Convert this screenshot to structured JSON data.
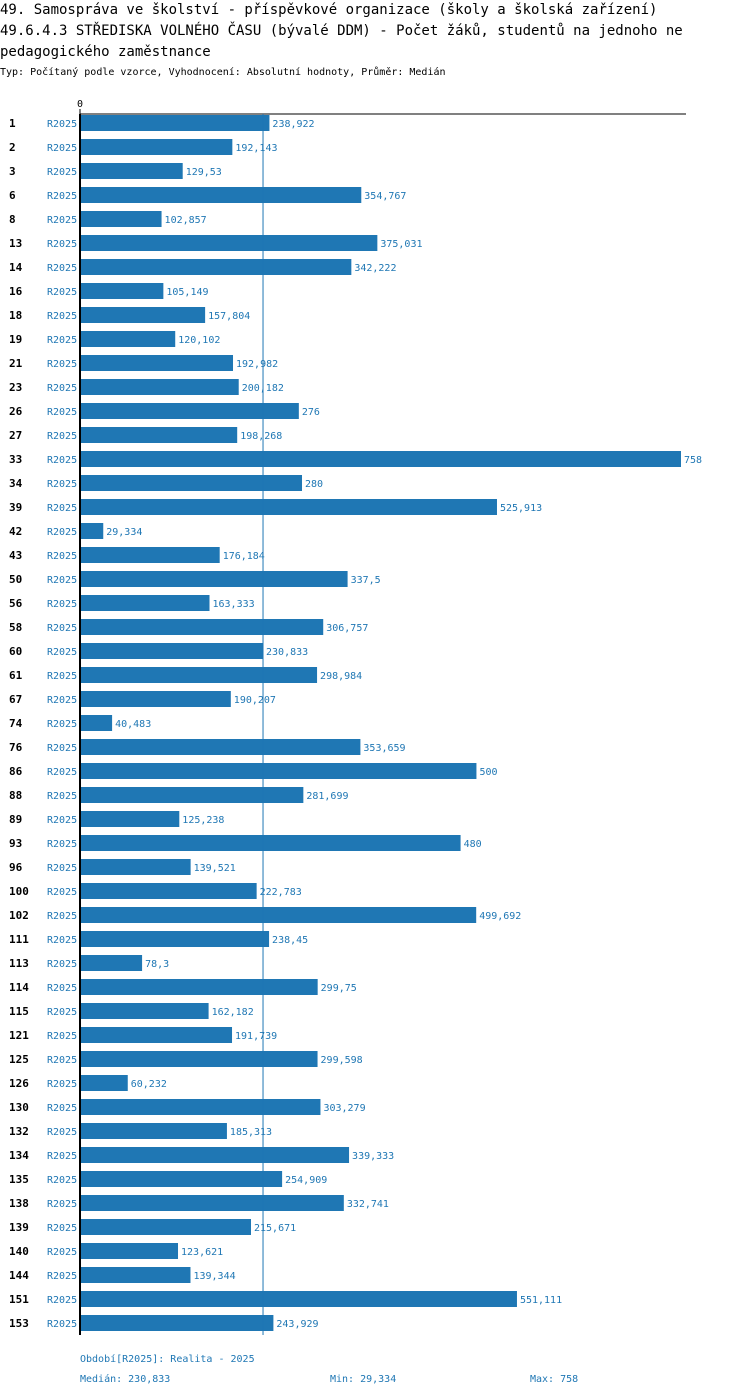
{
  "header": {
    "title_line1": "49. Samospráva ve školství - příspěvkové organizace (školy a školská zařízení)",
    "title_line2": "49.6.4.3 STŘEDISKA VOLNÉHO ČASU (bývalé DDM) - Počet žáků, studentů na jednoho ne",
    "title_line3": "pedagogického zaměstnance",
    "subtitle": "Typ: Počítaný podle vzorce, Vyhodnocení: Absolutní hodnoty, Průměr: Medián"
  },
  "chart_data": {
    "type": "bar",
    "orientation": "horizontal",
    "x_axis_tick": "0",
    "xlim": [
      0,
      758
    ],
    "median": 230.833,
    "period": "R2025",
    "rows": [
      {
        "id": "1",
        "period": "R2025",
        "value": 238.922,
        "label": "238,922"
      },
      {
        "id": "2",
        "period": "R2025",
        "value": 192.143,
        "label": "192,143"
      },
      {
        "id": "3",
        "period": "R2025",
        "value": 129.53,
        "label": "129,53"
      },
      {
        "id": "6",
        "period": "R2025",
        "value": 354.767,
        "label": "354,767"
      },
      {
        "id": "8",
        "period": "R2025",
        "value": 102.857,
        "label": "102,857"
      },
      {
        "id": "13",
        "period": "R2025",
        "value": 375.031,
        "label": "375,031"
      },
      {
        "id": "14",
        "period": "R2025",
        "value": 342.222,
        "label": "342,222"
      },
      {
        "id": "16",
        "period": "R2025",
        "value": 105.149,
        "label": "105,149"
      },
      {
        "id": "18",
        "period": "R2025",
        "value": 157.804,
        "label": "157,804"
      },
      {
        "id": "19",
        "period": "R2025",
        "value": 120.102,
        "label": "120,102"
      },
      {
        "id": "21",
        "period": "R2025",
        "value": 192.982,
        "label": "192,982"
      },
      {
        "id": "23",
        "period": "R2025",
        "value": 200.182,
        "label": "200,182"
      },
      {
        "id": "26",
        "period": "R2025",
        "value": 276,
        "label": "276"
      },
      {
        "id": "27",
        "period": "R2025",
        "value": 198.268,
        "label": "198,268"
      },
      {
        "id": "33",
        "period": "R2025",
        "value": 758,
        "label": "758"
      },
      {
        "id": "34",
        "period": "R2025",
        "value": 280,
        "label": "280"
      },
      {
        "id": "39",
        "period": "R2025",
        "value": 525.913,
        "label": "525,913"
      },
      {
        "id": "42",
        "period": "R2025",
        "value": 29.334,
        "label": "29,334"
      },
      {
        "id": "43",
        "period": "R2025",
        "value": 176.184,
        "label": "176,184"
      },
      {
        "id": "50",
        "period": "R2025",
        "value": 337.5,
        "label": "337,5"
      },
      {
        "id": "56",
        "period": "R2025",
        "value": 163.333,
        "label": "163,333"
      },
      {
        "id": "58",
        "period": "R2025",
        "value": 306.757,
        "label": "306,757"
      },
      {
        "id": "60",
        "period": "R2025",
        "value": 230.833,
        "label": "230,833"
      },
      {
        "id": "61",
        "period": "R2025",
        "value": 298.984,
        "label": "298,984"
      },
      {
        "id": "67",
        "period": "R2025",
        "value": 190.207,
        "label": "190,207"
      },
      {
        "id": "74",
        "period": "R2025",
        "value": 40.483,
        "label": "40,483"
      },
      {
        "id": "76",
        "period": "R2025",
        "value": 353.659,
        "label": "353,659"
      },
      {
        "id": "86",
        "period": "R2025",
        "value": 500,
        "label": "500"
      },
      {
        "id": "88",
        "period": "R2025",
        "value": 281.699,
        "label": "281,699"
      },
      {
        "id": "89",
        "period": "R2025",
        "value": 125.238,
        "label": "125,238"
      },
      {
        "id": "93",
        "period": "R2025",
        "value": 480,
        "label": "480"
      },
      {
        "id": "96",
        "period": "R2025",
        "value": 139.521,
        "label": "139,521"
      },
      {
        "id": "100",
        "period": "R2025",
        "value": 222.783,
        "label": "222,783"
      },
      {
        "id": "102",
        "period": "R2025",
        "value": 499.692,
        "label": "499,692"
      },
      {
        "id": "111",
        "period": "R2025",
        "value": 238.45,
        "label": "238,45"
      },
      {
        "id": "113",
        "period": "R2025",
        "value": 78.3,
        "label": "78,3"
      },
      {
        "id": "114",
        "period": "R2025",
        "value": 299.75,
        "label": "299,75"
      },
      {
        "id": "115",
        "period": "R2025",
        "value": 162.182,
        "label": "162,182"
      },
      {
        "id": "121",
        "period": "R2025",
        "value": 191.739,
        "label": "191,739"
      },
      {
        "id": "125",
        "period": "R2025",
        "value": 299.598,
        "label": "299,598"
      },
      {
        "id": "126",
        "period": "R2025",
        "value": 60.232,
        "label": "60,232"
      },
      {
        "id": "130",
        "period": "R2025",
        "value": 303.279,
        "label": "303,279"
      },
      {
        "id": "132",
        "period": "R2025",
        "value": 185.313,
        "label": "185,313"
      },
      {
        "id": "134",
        "period": "R2025",
        "value": 339.333,
        "label": "339,333"
      },
      {
        "id": "135",
        "period": "R2025",
        "value": 254.909,
        "label": "254,909"
      },
      {
        "id": "138",
        "period": "R2025",
        "value": 332.741,
        "label": "332,741"
      },
      {
        "id": "139",
        "period": "R2025",
        "value": 215.671,
        "label": "215,671"
      },
      {
        "id": "140",
        "period": "R2025",
        "value": 123.621,
        "label": "123,621"
      },
      {
        "id": "144",
        "period": "R2025",
        "value": 139.344,
        "label": "139,344"
      },
      {
        "id": "151",
        "period": "R2025",
        "value": 551.111,
        "label": "551,111"
      },
      {
        "id": "153",
        "period": "R2025",
        "value": 243.929,
        "label": "243,929"
      }
    ]
  },
  "footer": {
    "period": "Období[R2025]: Realita - 2025",
    "median": "Medián: 230,833",
    "min": "Min: 29,334",
    "max": "Max: 758"
  },
  "colors": {
    "bar": "#1f77b4",
    "text_accent": "#1f77b4",
    "axis": "#000000",
    "median_line": "#1f77b4"
  }
}
